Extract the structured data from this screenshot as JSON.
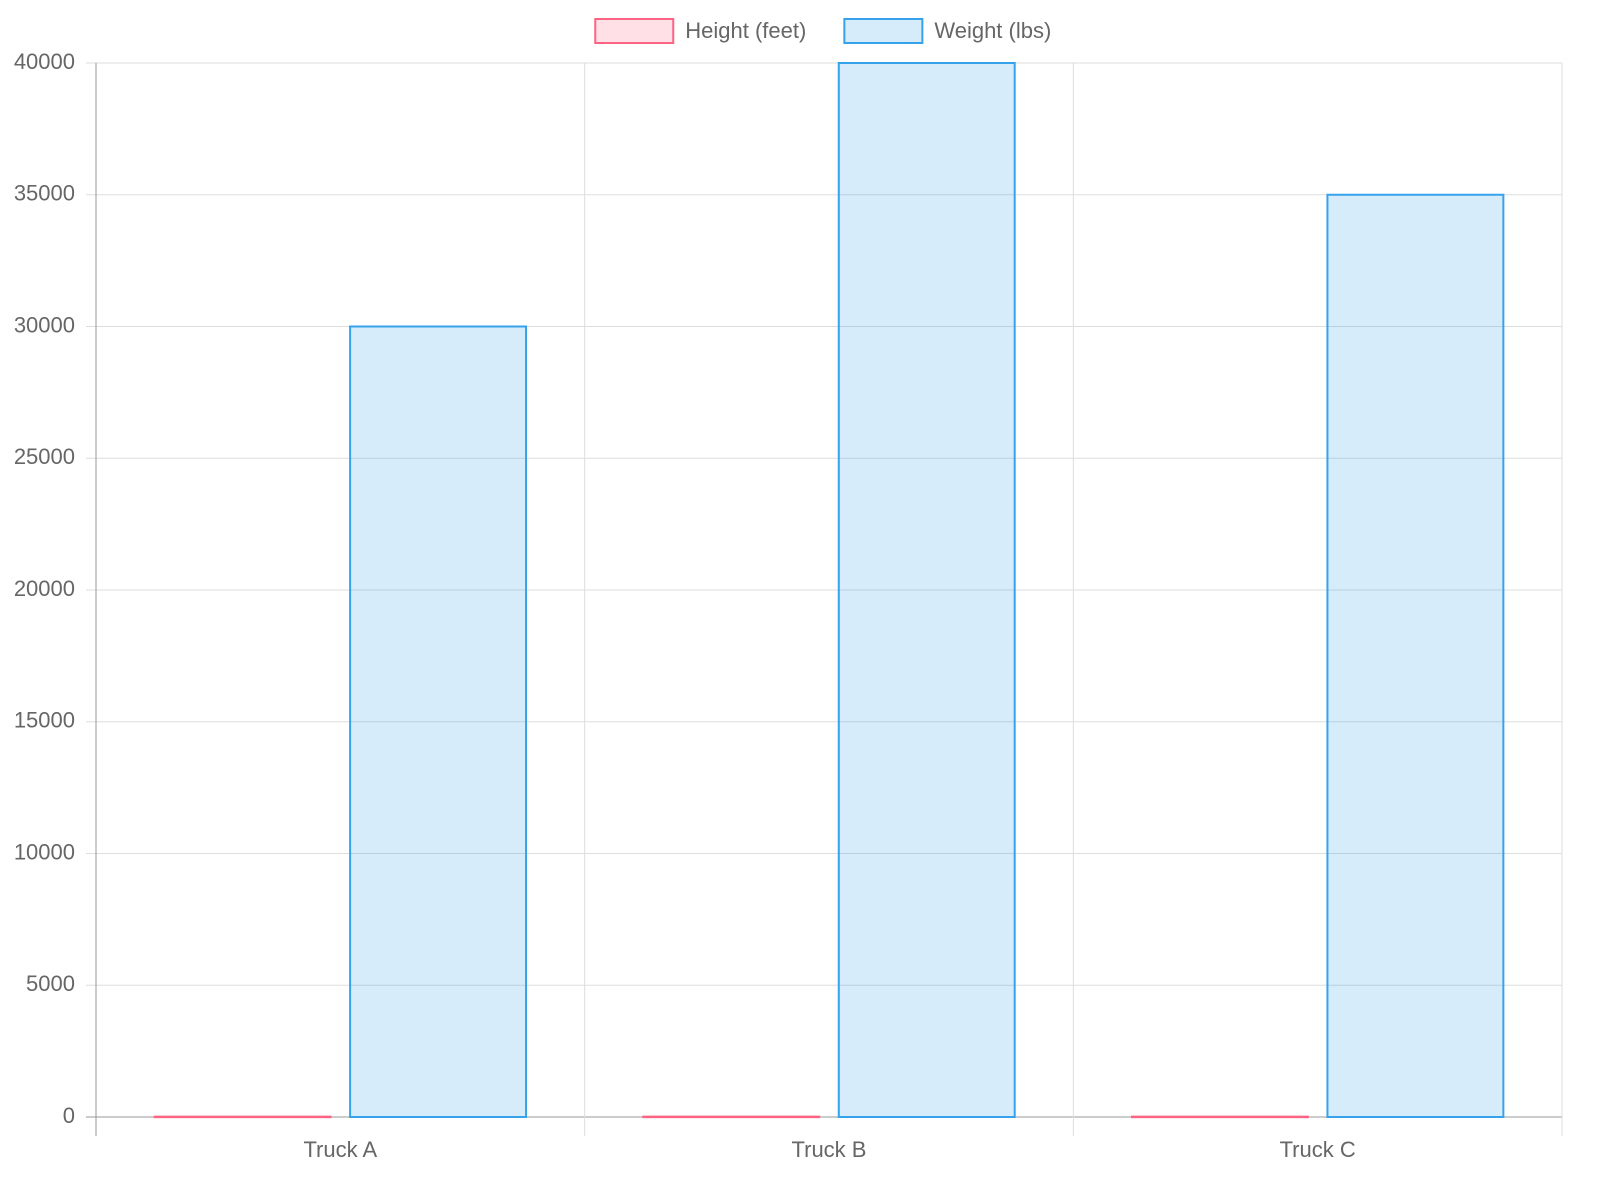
{
  "chart_data": {
    "type": "bar",
    "categories": [
      "Truck A",
      "Truck B",
      "Truck C"
    ],
    "series": [
      {
        "name": "Height (feet)",
        "color": "rgb(255, 99, 132)",
        "fill": "rgba(255, 99, 132, 0.2)",
        "values": [
          13,
          14,
          13
        ]
      },
      {
        "name": "Weight (lbs)",
        "color": "rgb(54, 162, 235)",
        "fill": "rgba(54, 162, 235, 0.2)",
        "values": [
          30000,
          40000,
          35000
        ]
      }
    ],
    "ylim": [
      0,
      40000
    ],
    "yticks": [
      0,
      5000,
      10000,
      15000,
      20000,
      25000,
      30000,
      35000,
      40000
    ],
    "grid": true,
    "legend": "top"
  }
}
